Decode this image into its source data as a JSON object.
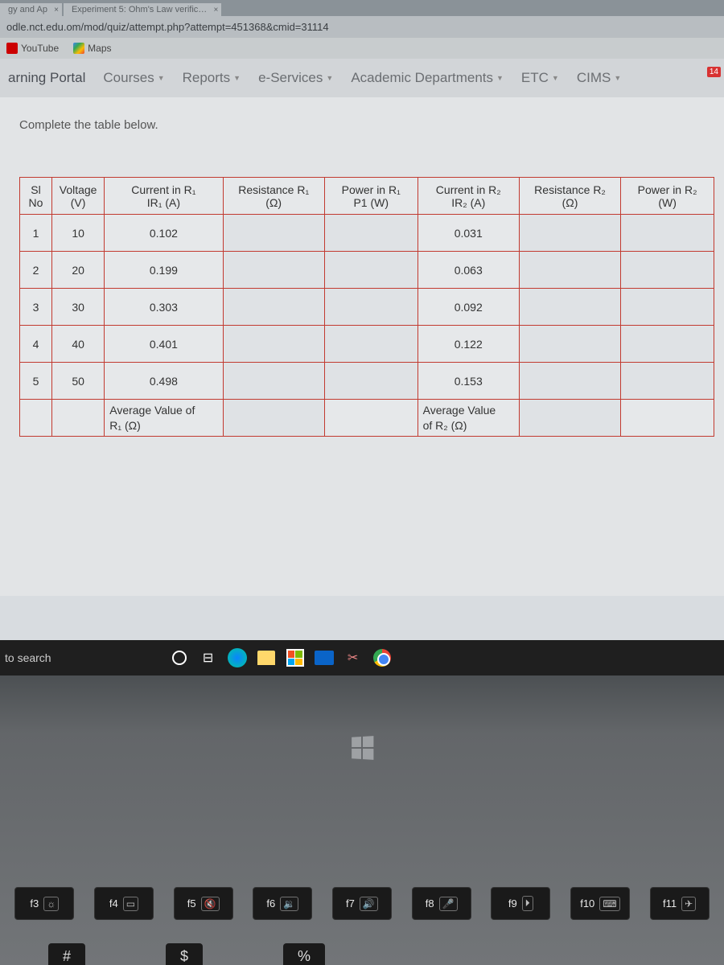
{
  "browser": {
    "tab1": "gy and Ap",
    "tab2": "Experiment 5: Ohm's Law verific…",
    "url": "odle.nct.edu.om/mod/quiz/attempt.php?attempt=451368&cmid=31114",
    "bookmarks": {
      "youtube": "YouTube",
      "maps": "Maps"
    }
  },
  "portal": {
    "title": "arning Portal",
    "nav": {
      "courses": "Courses",
      "reports": "Reports",
      "eservices": "e-Services",
      "academics": "Academic Departments",
      "etc": "ETC",
      "cims": "CIMS"
    },
    "notif": "14"
  },
  "instruction": "Complete the table below.",
  "headers": {
    "sl1": "Sl",
    "sl2": "No",
    "v1": "Voltage",
    "v2": "(V)",
    "ir1a": "Current in R₁",
    "ir1b": "IR₁ (A)",
    "rr1a": "Resistance R₁",
    "rr1b": "(Ω)",
    "p1a": "Power in R₁",
    "p1b": "P1 (W)",
    "ir2a": "Current in R₂",
    "ir2b": "IR₂ (A)",
    "rr2a": "Resistance R₂",
    "rr2b": "(Ω)",
    "p2a": "Power in R₂",
    "p2b": "(W)"
  },
  "rows": [
    {
      "n": "1",
      "v": "10",
      "ir1": "0.102",
      "ir2": "0.031"
    },
    {
      "n": "2",
      "v": "20",
      "ir1": "0.199",
      "ir2": "0.063"
    },
    {
      "n": "3",
      "v": "30",
      "ir1": "0.303",
      "ir2": "0.092"
    },
    {
      "n": "4",
      "v": "40",
      "ir1": "0.401",
      "ir2": "0.122"
    },
    {
      "n": "5",
      "v": "50",
      "ir1": "0.498",
      "ir2": "0.153"
    }
  ],
  "avg": {
    "r1a": "Average Value of",
    "r1b": "R₁ (Ω)",
    "r2a": "Average Value",
    "r2b": "of R₂ (Ω)"
  },
  "taskbar": {
    "search": "to search"
  },
  "fnkeys": {
    "f3": "f3",
    "f4": "f4",
    "f5": "f5",
    "f6": "f6",
    "f7": "f7",
    "f8": "f8",
    "f9": "f9",
    "f10": "f10",
    "f11": "f11"
  },
  "numrow": {
    "hash": "#",
    "dollar": "$",
    "pct": "%"
  }
}
